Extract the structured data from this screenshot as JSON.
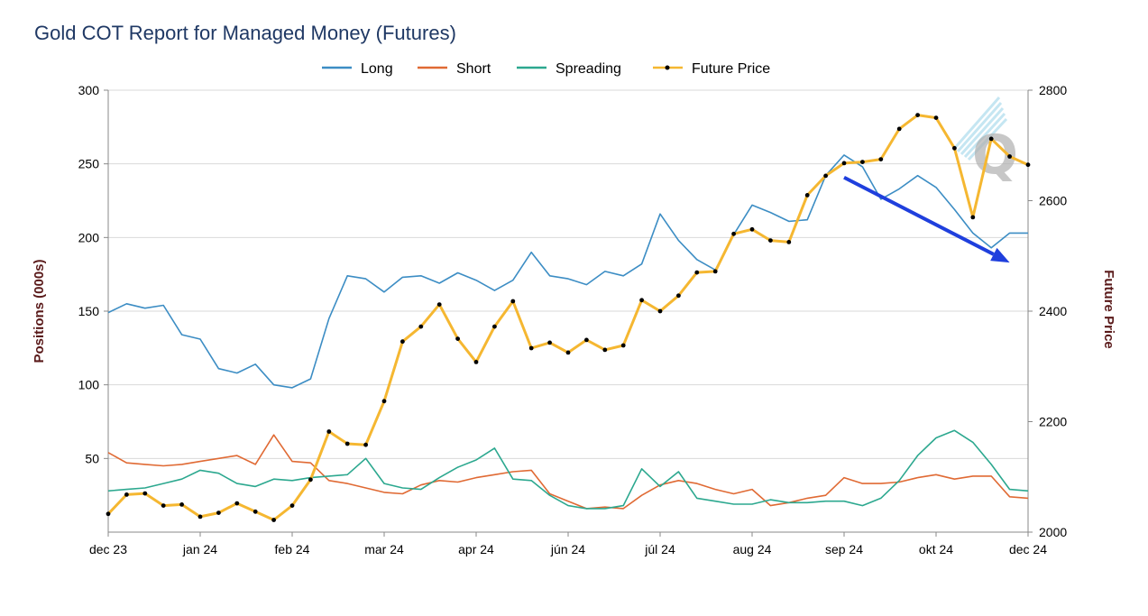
{
  "chart_data": {
    "type": "line",
    "title": "Gold COT Report for Managed Money (Futures)",
    "ylabel": "Positions (000s)",
    "y2label": "Future Price",
    "ylim": [
      0,
      300
    ],
    "y2lim": [
      2000,
      2800
    ],
    "yticks": [
      "50",
      "100",
      "150",
      "200",
      "250",
      "300"
    ],
    "y2ticks": [
      "2000",
      "2200",
      "2400",
      "2600",
      "2800"
    ],
    "xtick_labels": [
      "dec 23",
      "jan 24",
      "feb 24",
      "mar 24",
      "apr 24",
      "jún 24",
      "júl 24",
      "aug 24",
      "sep 24",
      "okt 24",
      "dec 24"
    ],
    "xtick_weeks": [
      0,
      5,
      10,
      15,
      20,
      25,
      30,
      35,
      40,
      45,
      50
    ],
    "weeks": [
      0,
      1,
      2,
      3,
      4,
      5,
      6,
      7,
      8,
      9,
      10,
      11,
      12,
      13,
      14,
      15,
      16,
      17,
      18,
      19,
      20,
      21,
      22,
      23,
      24,
      25,
      26,
      27,
      28,
      29,
      30,
      31,
      32,
      33,
      34,
      35,
      36,
      37,
      38,
      39,
      40,
      41,
      42,
      43,
      44,
      45,
      46,
      47,
      48,
      49,
      50
    ],
    "legend_position": "top-center",
    "grid": "horizontal",
    "series": [
      {
        "name": "Long",
        "color": "#3c8dc4",
        "axis": "left",
        "values": [
          149,
          155,
          152,
          154,
          134,
          131,
          111,
          108,
          114,
          100,
          98,
          104,
          145,
          174,
          172,
          163,
          173,
          174,
          169,
          176,
          171,
          164,
          171,
          190,
          174,
          172,
          168,
          177,
          174,
          182,
          216,
          198,
          185,
          178,
          202,
          222,
          217,
          211,
          212,
          242,
          256,
          248,
          226,
          233,
          242,
          234,
          219,
          203,
          193,
          203,
          203
        ]
      },
      {
        "name": "Short",
        "color": "#e06a34",
        "axis": "left",
        "values": [
          54,
          47,
          46,
          45,
          46,
          48,
          50,
          52,
          46,
          66,
          48,
          47,
          35,
          33,
          30,
          27,
          26,
          32,
          35,
          34,
          37,
          39,
          41,
          42,
          26,
          21,
          16,
          17,
          16,
          25,
          32,
          35,
          33,
          29,
          26,
          29,
          18,
          20,
          23,
          25,
          37,
          33,
          33,
          34,
          37,
          39,
          36,
          38,
          38,
          24,
          23
        ]
      },
      {
        "name": "Spreading",
        "color": "#2ca88f",
        "axis": "left",
        "values": [
          28,
          29,
          30,
          33,
          36,
          42,
          40,
          33,
          31,
          36,
          35,
          37,
          38,
          39,
          50,
          33,
          30,
          29,
          37,
          44,
          49,
          57,
          36,
          35,
          25,
          18,
          16,
          16,
          18,
          43,
          31,
          41,
          23,
          21,
          19,
          19,
          22,
          20,
          20,
          21,
          21,
          18,
          23,
          35,
          52,
          64,
          69,
          61,
          46,
          29,
          28
        ]
      },
      {
        "name": "Future Price",
        "color": "#f5b731",
        "axis": "right",
        "markers": true,
        "values": [
          2033,
          2068,
          2070,
          2048,
          2050,
          2028,
          2035,
          2052,
          2037,
          2022,
          2048,
          2095,
          2182,
          2160,
          2158,
          2237,
          2345,
          2372,
          2412,
          2350,
          2308,
          2372,
          2418,
          2333,
          2343,
          2325,
          2348,
          2330,
          2338,
          2420,
          2400,
          2428,
          2470,
          2472,
          2540,
          2548,
          2528,
          2525,
          2610,
          2645,
          2668,
          2670,
          2675,
          2730,
          2755,
          2750,
          2695,
          2570,
          2712,
          2680,
          2665
        ]
      }
    ],
    "annotation": {
      "type": "arrow",
      "color": "#1f3fdd",
      "from": [
        40,
        2642
      ],
      "to": [
        49,
        2488
      ]
    }
  }
}
